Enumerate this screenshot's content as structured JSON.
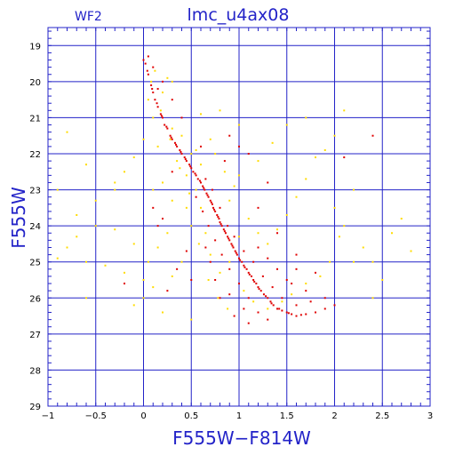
{
  "chart_data": {
    "type": "scatter",
    "panel_label": "WF2",
    "title": "lmc_u4ax08",
    "xlabel": "F555W−F814W",
    "ylabel": "F555W",
    "xlim": [
      -1,
      3
    ],
    "ylim": [
      29,
      18.5
    ],
    "y_inverted": true,
    "x_ticks": [
      -1,
      -0.5,
      0,
      0.5,
      1,
      1.5,
      2,
      2.5,
      3
    ],
    "x_tick_labels": [
      "−1",
      "−0.5",
      "0",
      "0.5",
      "1",
      "1.5",
      "2",
      "2.5",
      "3"
    ],
    "y_ticks": [
      19,
      20,
      21,
      22,
      23,
      24,
      25,
      26,
      27,
      28,
      29
    ],
    "y_tick_labels": [
      "19",
      "20",
      "21",
      "22",
      "23",
      "24",
      "25",
      "26",
      "27",
      "28",
      "29"
    ],
    "grid": true,
    "colors": {
      "axes": "#2323c8",
      "grid": "#2323c8",
      "text": "#2323c8"
    },
    "series": [
      {
        "color": "#e00000",
        "points": [
          [
            0.02,
            19.5
          ],
          [
            0.05,
            19.8
          ],
          [
            0.08,
            20.1
          ],
          [
            0.1,
            20.3
          ],
          [
            0.12,
            20.5
          ],
          [
            0.15,
            20.7
          ],
          [
            0.18,
            20.9
          ],
          [
            0.2,
            21.0
          ],
          [
            0.22,
            21.2
          ],
          [
            0.25,
            21.3
          ],
          [
            0.28,
            21.5
          ],
          [
            0.3,
            21.6
          ],
          [
            0.33,
            21.7
          ],
          [
            0.35,
            21.8
          ],
          [
            0.38,
            21.9
          ],
          [
            0.4,
            22.0
          ],
          [
            0.43,
            22.1
          ],
          [
            0.45,
            22.2
          ],
          [
            0.48,
            22.3
          ],
          [
            0.5,
            22.4
          ],
          [
            0.52,
            22.5
          ],
          [
            0.55,
            22.6
          ],
          [
            0.57,
            22.7
          ],
          [
            0.6,
            22.8
          ],
          [
            0.62,
            22.9
          ],
          [
            0.64,
            23.0
          ],
          [
            0.66,
            23.1
          ],
          [
            0.68,
            23.2
          ],
          [
            0.7,
            23.3
          ],
          [
            0.72,
            23.4
          ],
          [
            0.73,
            23.5
          ],
          [
            0.75,
            23.6
          ],
          [
            0.77,
            23.7
          ],
          [
            0.79,
            23.8
          ],
          [
            0.8,
            23.9
          ],
          [
            0.82,
            24.0
          ],
          [
            0.84,
            24.1
          ],
          [
            0.86,
            24.2
          ],
          [
            0.88,
            24.3
          ],
          [
            0.9,
            24.4
          ],
          [
            0.92,
            24.5
          ],
          [
            0.94,
            24.6
          ],
          [
            0.96,
            24.7
          ],
          [
            0.98,
            24.8
          ],
          [
            1.0,
            24.9
          ],
          [
            1.03,
            25.0
          ],
          [
            1.05,
            25.1
          ],
          [
            1.08,
            25.2
          ],
          [
            1.1,
            25.3
          ],
          [
            1.13,
            25.4
          ],
          [
            1.15,
            25.5
          ],
          [
            1.18,
            25.6
          ],
          [
            1.2,
            25.7
          ],
          [
            1.23,
            25.8
          ],
          [
            1.26,
            25.9
          ],
          [
            1.3,
            26.0
          ],
          [
            1.33,
            26.1
          ],
          [
            1.36,
            26.2
          ],
          [
            1.4,
            26.3
          ],
          [
            1.45,
            26.35
          ],
          [
            1.5,
            26.4
          ],
          [
            1.55,
            26.45
          ],
          [
            1.6,
            26.5
          ],
          [
            1.7,
            26.45
          ],
          [
            1.8,
            26.4
          ],
          [
            1.9,
            26.3
          ],
          [
            2.0,
            26.2
          ],
          [
            0.04,
            19.7
          ],
          [
            0.09,
            20.2
          ],
          [
            0.14,
            20.6
          ],
          [
            0.19,
            20.95
          ],
          [
            0.24,
            21.25
          ],
          [
            0.29,
            21.55
          ],
          [
            0.34,
            21.75
          ],
          [
            0.39,
            21.95
          ],
          [
            0.44,
            22.15
          ],
          [
            0.49,
            22.35
          ],
          [
            0.54,
            22.55
          ],
          [
            0.59,
            22.75
          ],
          [
            0.63,
            22.95
          ],
          [
            0.67,
            23.15
          ],
          [
            0.71,
            23.35
          ],
          [
            0.74,
            23.55
          ],
          [
            0.78,
            23.75
          ],
          [
            0.81,
            23.95
          ],
          [
            0.85,
            24.15
          ],
          [
            0.89,
            24.35
          ],
          [
            0.93,
            24.55
          ],
          [
            0.97,
            24.75
          ],
          [
            1.01,
            24.95
          ],
          [
            1.06,
            25.15
          ],
          [
            1.11,
            25.35
          ],
          [
            1.16,
            25.55
          ],
          [
            1.21,
            25.75
          ],
          [
            1.28,
            25.95
          ],
          [
            1.34,
            26.15
          ],
          [
            1.42,
            26.3
          ],
          [
            1.52,
            26.42
          ],
          [
            1.65,
            26.47
          ],
          [
            0.65,
            22.7
          ],
          [
            0.72,
            23.0
          ],
          [
            0.8,
            23.5
          ],
          [
            0.88,
            24.0
          ],
          [
            0.95,
            24.3
          ],
          [
            1.05,
            24.7
          ],
          [
            1.15,
            25.0
          ],
          [
            1.25,
            25.4
          ],
          [
            1.35,
            25.7
          ],
          [
            1.45,
            26.0
          ],
          [
            1.6,
            26.2
          ],
          [
            1.75,
            26.1
          ],
          [
            0.55,
            23.2
          ],
          [
            0.62,
            23.6
          ],
          [
            0.68,
            24.0
          ],
          [
            0.75,
            24.4
          ],
          [
            0.82,
            24.8
          ],
          [
            0.9,
            25.2
          ],
          [
            1.0,
            25.6
          ],
          [
            1.1,
            26.0
          ],
          [
            1.2,
            26.4
          ],
          [
            1.3,
            26.6
          ],
          [
            1.1,
            26.7
          ],
          [
            0.95,
            26.5
          ],
          [
            1.5,
            25.5
          ],
          [
            1.7,
            25.8
          ],
          [
            1.9,
            26.0
          ],
          [
            1.6,
            25.2
          ],
          [
            0.3,
            22.5
          ],
          [
            0.5,
            25.5
          ],
          [
            -0.2,
            25.6
          ],
          [
            1.1,
            22.0
          ],
          [
            0.9,
            21.5
          ],
          [
            1.3,
            22.8
          ],
          [
            2.4,
            21.5
          ],
          [
            2.1,
            22.1
          ],
          [
            1.0,
            21.8
          ],
          [
            0.4,
            21.0
          ],
          [
            0.6,
            21.8
          ],
          [
            0.85,
            22.2
          ],
          [
            1.2,
            23.5
          ],
          [
            1.4,
            24.2
          ],
          [
            1.6,
            24.8
          ],
          [
            1.8,
            25.3
          ],
          [
            0.45,
            24.7
          ],
          [
            0.35,
            25.2
          ],
          [
            0.25,
            25.8
          ],
          [
            0.15,
            24.0
          ],
          [
            0.1,
            23.5
          ],
          [
            0.2,
            23.8
          ],
          [
            0.9,
            25.9
          ],
          [
            1.05,
            26.3
          ],
          [
            0.8,
            26.0
          ],
          [
            0.75,
            25.5
          ],
          [
            0.7,
            25.0
          ],
          [
            0.65,
            24.6
          ],
          [
            1.2,
            24.6
          ],
          [
            1.3,
            24.9
          ],
          [
            1.4,
            25.2
          ],
          [
            1.55,
            25.6
          ],
          [
            0.3,
            20.5
          ],
          [
            0.2,
            20.0
          ],
          [
            0.1,
            19.6
          ],
          [
            0.0,
            19.4
          ],
          [
            0.05,
            19.3
          ],
          [
            0.15,
            20.2
          ]
        ]
      },
      {
        "color": "#ffdc00",
        "points": [
          [
            -0.8,
            21.4
          ],
          [
            -0.6,
            22.3
          ],
          [
            -0.9,
            23.0
          ],
          [
            -0.7,
            23.7
          ],
          [
            -0.5,
            24.0
          ],
          [
            -0.3,
            24.1
          ],
          [
            -0.1,
            24.5
          ],
          [
            -0.8,
            24.6
          ],
          [
            -0.9,
            24.9
          ],
          [
            -0.6,
            25.0
          ],
          [
            -0.4,
            25.1
          ],
          [
            -0.2,
            25.3
          ],
          [
            0.0,
            25.5
          ],
          [
            -0.6,
            26.0
          ],
          [
            -0.3,
            23.0
          ],
          [
            -0.2,
            22.5
          ],
          [
            0.1,
            23.0
          ],
          [
            0.2,
            22.8
          ],
          [
            0.3,
            23.3
          ],
          [
            0.25,
            24.2
          ],
          [
            0.15,
            24.6
          ],
          [
            0.05,
            25.0
          ],
          [
            0.3,
            25.4
          ],
          [
            0.4,
            25.0
          ],
          [
            0.5,
            24.0
          ],
          [
            0.45,
            23.5
          ],
          [
            0.35,
            22.2
          ],
          [
            0.15,
            21.8
          ],
          [
            0.1,
            21.0
          ],
          [
            0.05,
            20.5
          ],
          [
            0.2,
            20.3
          ],
          [
            0.3,
            20.0
          ],
          [
            0.4,
            21.5
          ],
          [
            0.5,
            22.0
          ],
          [
            0.6,
            22.3
          ],
          [
            0.55,
            21.9
          ],
          [
            0.45,
            22.6
          ],
          [
            0.55,
            23.0
          ],
          [
            0.6,
            23.5
          ],
          [
            0.65,
            24.2
          ],
          [
            0.7,
            24.8
          ],
          [
            0.8,
            25.3
          ],
          [
            0.9,
            25.0
          ],
          [
            1.0,
            24.3
          ],
          [
            1.1,
            23.8
          ],
          [
            1.2,
            24.2
          ],
          [
            1.3,
            24.5
          ],
          [
            1.4,
            24.1
          ],
          [
            1.5,
            23.7
          ],
          [
            1.6,
            23.2
          ],
          [
            1.7,
            22.7
          ],
          [
            1.8,
            22.1
          ],
          [
            1.9,
            21.9
          ],
          [
            2.0,
            23.5
          ],
          [
            2.1,
            24.0
          ],
          [
            2.2,
            23.0
          ],
          [
            2.3,
            24.6
          ],
          [
            2.4,
            25.0
          ],
          [
            2.5,
            25.5
          ],
          [
            2.6,
            24.2
          ],
          [
            2.7,
            23.8
          ],
          [
            2.8,
            24.7
          ],
          [
            2.4,
            26.0
          ],
          [
            2.2,
            25.0
          ],
          [
            1.5,
            21.2
          ],
          [
            1.7,
            21.0
          ],
          [
            2.1,
            20.8
          ],
          [
            2.0,
            21.5
          ],
          [
            1.0,
            21.2
          ],
          [
            0.8,
            20.8
          ],
          [
            0.7,
            21.6
          ],
          [
            0.3,
            21.3
          ],
          [
            0.25,
            19.9
          ],
          [
            0.12,
            19.7
          ],
          [
            0.08,
            20.0
          ],
          [
            0.18,
            20.8
          ],
          [
            0.28,
            21.6
          ],
          [
            0.38,
            22.4
          ],
          [
            0.48,
            23.1
          ],
          [
            0.58,
            24.5
          ],
          [
            0.68,
            25.5
          ],
          [
            0.78,
            26.0
          ],
          [
            0.88,
            26.3
          ],
          [
            1.05,
            25.8
          ],
          [
            1.15,
            26.1
          ],
          [
            1.3,
            26.3
          ],
          [
            1.45,
            26.1
          ],
          [
            1.55,
            25.9
          ],
          [
            1.7,
            25.6
          ],
          [
            1.85,
            25.4
          ],
          [
            1.95,
            25.0
          ],
          [
            2.05,
            24.3
          ],
          [
            0.0,
            26.0
          ],
          [
            0.1,
            25.7
          ],
          [
            -0.1,
            26.2
          ],
          [
            0.2,
            26.4
          ],
          [
            0.5,
            26.6
          ],
          [
            -0.5,
            23.3
          ],
          [
            -0.7,
            24.3
          ],
          [
            -0.3,
            22.8
          ],
          [
            0.0,
            21.6
          ],
          [
            -0.1,
            22.1
          ],
          [
            0.6,
            20.9
          ],
          [
            0.9,
            23.3
          ],
          [
            1.0,
            22.6
          ],
          [
            1.2,
            22.2
          ],
          [
            1.35,
            21.7
          ],
          [
            0.75,
            22.0
          ],
          [
            0.85,
            22.5
          ],
          [
            0.95,
            22.9
          ]
        ]
      }
    ]
  }
}
